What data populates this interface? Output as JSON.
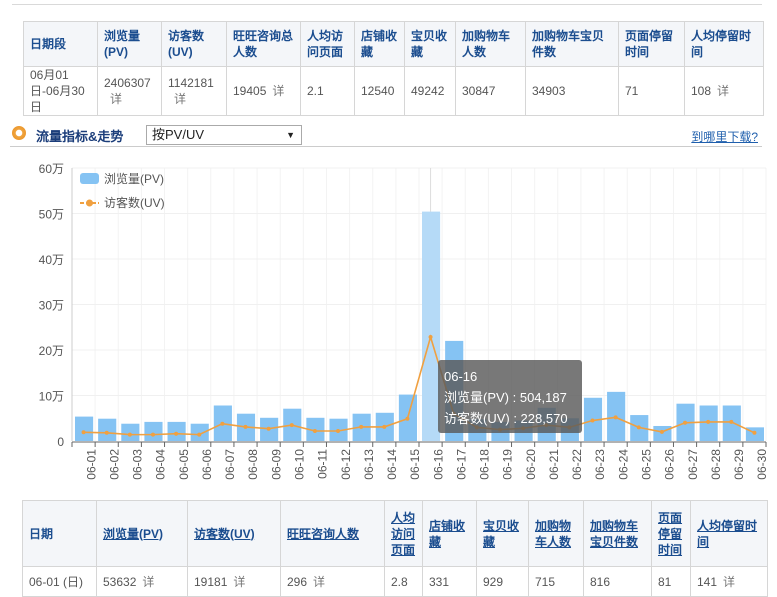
{
  "summary_table": {
    "headers": [
      "日期段",
      "浏览量(PV)",
      "访客数(UV)",
      "旺旺咨询总人数",
      "人均访问页面",
      "店铺收藏",
      "宝贝收藏",
      "加购物车人数",
      "加购物车宝贝件数",
      "页面停留时间",
      "人均停留时间"
    ],
    "row": [
      "06月01日-06月30日",
      "2406307",
      "1142181",
      "19405",
      "2.1",
      "12540",
      "49242",
      "30847",
      "34903",
      "71",
      "108"
    ],
    "detail_label": "详"
  },
  "section": {
    "title": "流量指标&走势",
    "select_value": "按PV/UV",
    "download_link": "到哪里下载?"
  },
  "tooltip": {
    "date": "06-16",
    "pv_line": "浏览量(PV) : 504,187",
    "uv_line": "访客数(UV) : 228,570"
  },
  "colors": {
    "bar": "#85c3f3",
    "bar_highlight": "#b5daf7",
    "line": "#f0a040",
    "header_text": "#1b4d8f"
  },
  "chart_data": {
    "type": "bar",
    "title": "流量指标&走势",
    "xlabel": "",
    "ylabel": "",
    "ylim": [
      0,
      600000
    ],
    "yticks": [
      "0",
      "10万",
      "20万",
      "30万",
      "40万",
      "50万",
      "60万"
    ],
    "legend_position": "top-left",
    "grid": true,
    "categories": [
      "06-01",
      "06-02",
      "06-03",
      "06-04",
      "06-05",
      "06-06",
      "06-07",
      "06-08",
      "06-09",
      "06-10",
      "06-11",
      "06-12",
      "06-13",
      "06-14",
      "06-15",
      "06-16",
      "06-17",
      "06-18",
      "06-19",
      "06-20",
      "06-21",
      "06-22",
      "06-23",
      "06-24",
      "06-25",
      "06-26",
      "06-27",
      "06-28",
      "06-29",
      "06-30"
    ],
    "series": [
      {
        "name": "浏览量(PV)",
        "type": "bar",
        "values": [
          53632,
          49000,
          38000,
          42000,
          42000,
          38000,
          78000,
          60000,
          51000,
          71000,
          51000,
          49000,
          60000,
          62000,
          102000,
          504187,
          220000,
          48000,
          42000,
          45000,
          73000,
          50000,
          95000,
          108000,
          57000,
          33000,
          82000,
          78000,
          78000,
          30000
        ]
      },
      {
        "name": "访客数(UV)",
        "type": "line",
        "values": [
          19181,
          18000,
          14000,
          14000,
          16000,
          14000,
          38000,
          31000,
          27000,
          35000,
          22000,
          22000,
          31000,
          31000,
          49000,
          228570,
          60000,
          30000,
          25000,
          28000,
          35000,
          30000,
          45000,
          52000,
          30000,
          20000,
          40000,
          42000,
          42000,
          18000
        ]
      }
    ]
  },
  "daily_table": {
    "headers": [
      "日期",
      "浏览量(PV)",
      "访客数(UV)",
      "旺旺咨询人数",
      "人均访问页面",
      "店铺收藏",
      "宝贝收藏",
      "加购物车人数",
      "加购物车宝贝件数",
      "页面停留时间",
      "人均停留时间"
    ],
    "rows": [
      [
        "06-01 (日)",
        "53632",
        "19181",
        "296",
        "2.8",
        "331",
        "929",
        "715",
        "816",
        "81",
        "141"
      ]
    ],
    "detail_label": "详"
  }
}
